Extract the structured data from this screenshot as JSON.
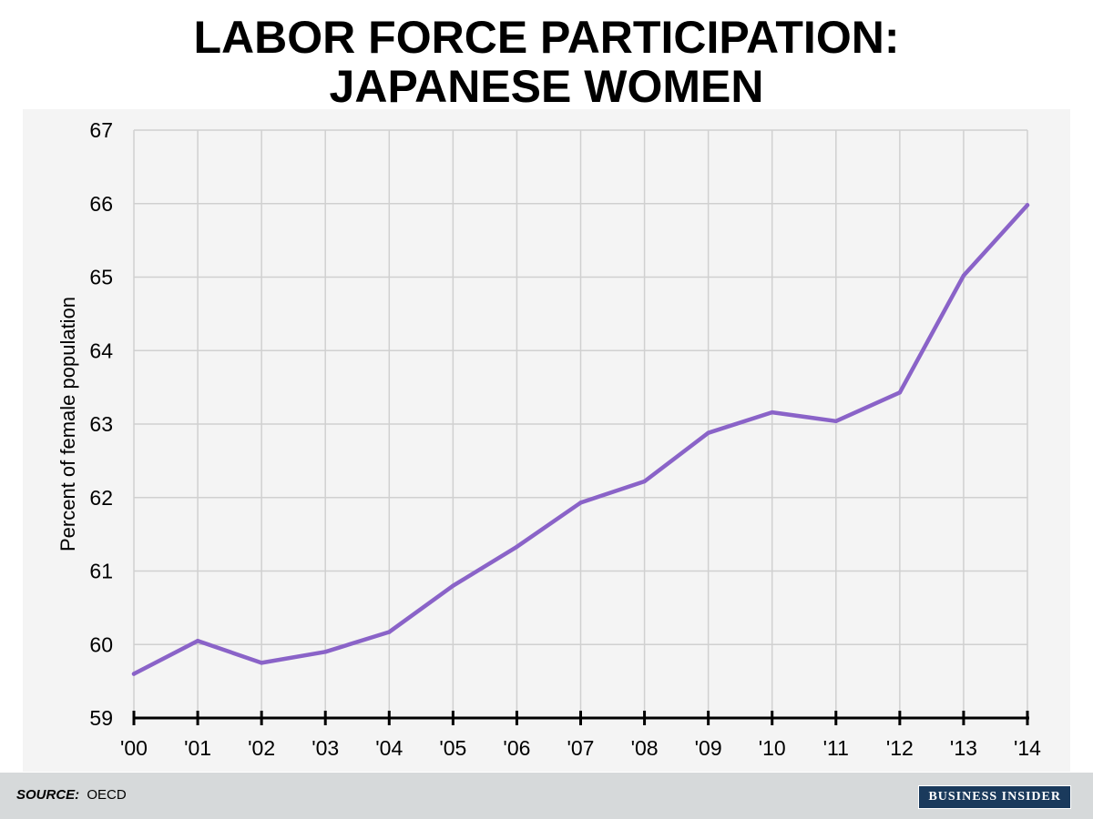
{
  "title": {
    "line1": "LABOR FORCE PARTICIPATION:",
    "line2": "JAPANESE WOMEN"
  },
  "footer": {
    "source_label": "SOURCE:",
    "source_value": "OECD",
    "brand": "BUSINESS INSIDER"
  },
  "colors": {
    "line": "#8a63c8",
    "grid": "#d0d0d0",
    "axis": "#000000",
    "plot_background": "#f4f4f4",
    "footer_background": "#d6d9da",
    "brand_background": "#1a3a5c"
  },
  "chart_data": {
    "type": "line",
    "title": "LABOR FORCE PARTICIPATION: JAPANESE WOMEN",
    "xlabel": "",
    "ylabel": "Percent of female population",
    "categories": [
      "'00",
      "'01",
      "'02",
      "'03",
      "'04",
      "'05",
      "'06",
      "'07",
      "'08",
      "'09",
      "'10",
      "'11",
      "'12",
      "'13",
      "'14"
    ],
    "series": [
      {
        "values": [
          59.6,
          60.05,
          59.75,
          59.9,
          60.17,
          60.8,
          61.33,
          61.93,
          62.22,
          62.88,
          63.16,
          63.04,
          63.43,
          65.02,
          65.98
        ]
      }
    ],
    "ylim": [
      59,
      67
    ],
    "yticks": [
      59,
      60,
      61,
      62,
      63,
      64,
      65,
      66,
      67
    ],
    "grid": true,
    "legend": "none"
  }
}
